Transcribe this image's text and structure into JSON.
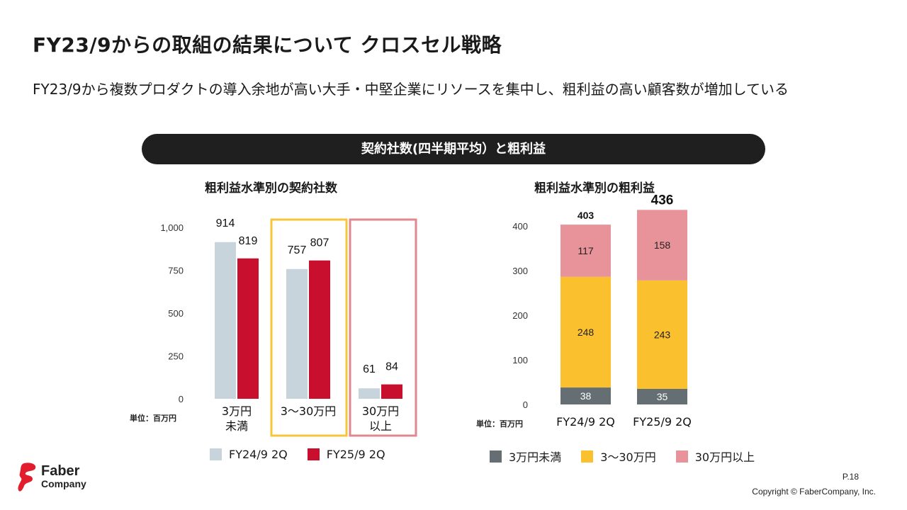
{
  "header": {
    "title": "FY23/9からの取組の結果について クロスセル戦略",
    "subtitle": "FY23/9から複数プロダクトの導入余地が高い大手・中堅企業にリソースを集中し、粗利益の高い顧客数が増加している"
  },
  "banner": {
    "label": "契約社数(四半期平均）と粗利益"
  },
  "colors": {
    "fy24": "#c7d4dc",
    "fy25": "#c8102e",
    "tier_low": "#646e73",
    "tier_mid": "#fbc02d",
    "tier_high": "#e8929a",
    "box_mid": "#f7c538",
    "box_high": "#e0888f"
  },
  "chart_data": [
    {
      "type": "bar",
      "title": "粗利益水準別の契約社数",
      "unit_label": "単位：百万円",
      "categories": [
        "3万円\n未満",
        "3〜30万円",
        "30万円\n以上"
      ],
      "series": [
        {
          "name": "FY24/9 2Q",
          "values": [
            914,
            757,
            61
          ]
        },
        {
          "name": "FY25/9 2Q",
          "values": [
            819,
            807,
            84
          ]
        }
      ],
      "yticks": [
        "1,000",
        "750",
        "500",
        "250",
        "0"
      ],
      "ylim": [
        0,
        1000
      ],
      "legend": "bottom"
    },
    {
      "type": "bar",
      "stacked": true,
      "title": "粗利益水準別の粗利益",
      "unit_label": "単位：百万円",
      "categories": [
        "FY24/9 2Q",
        "FY25/9 2Q"
      ],
      "series": [
        {
          "name": "3万円未満",
          "values": [
            38,
            35
          ]
        },
        {
          "name": "3〜30万円",
          "values": [
            248,
            243
          ]
        },
        {
          "name": "30万円以上",
          "values": [
            117,
            158
          ]
        }
      ],
      "totals": [
        403,
        436
      ],
      "yticks": [
        "400",
        "300",
        "200",
        "100",
        "0"
      ],
      "ylim": [
        0,
        400
      ],
      "legend": "bottom"
    }
  ],
  "footer": {
    "logo_line1": "Faber",
    "logo_line2": "Company",
    "page": "P.18",
    "copyright": "Copyright © FaberCompany, Inc."
  }
}
